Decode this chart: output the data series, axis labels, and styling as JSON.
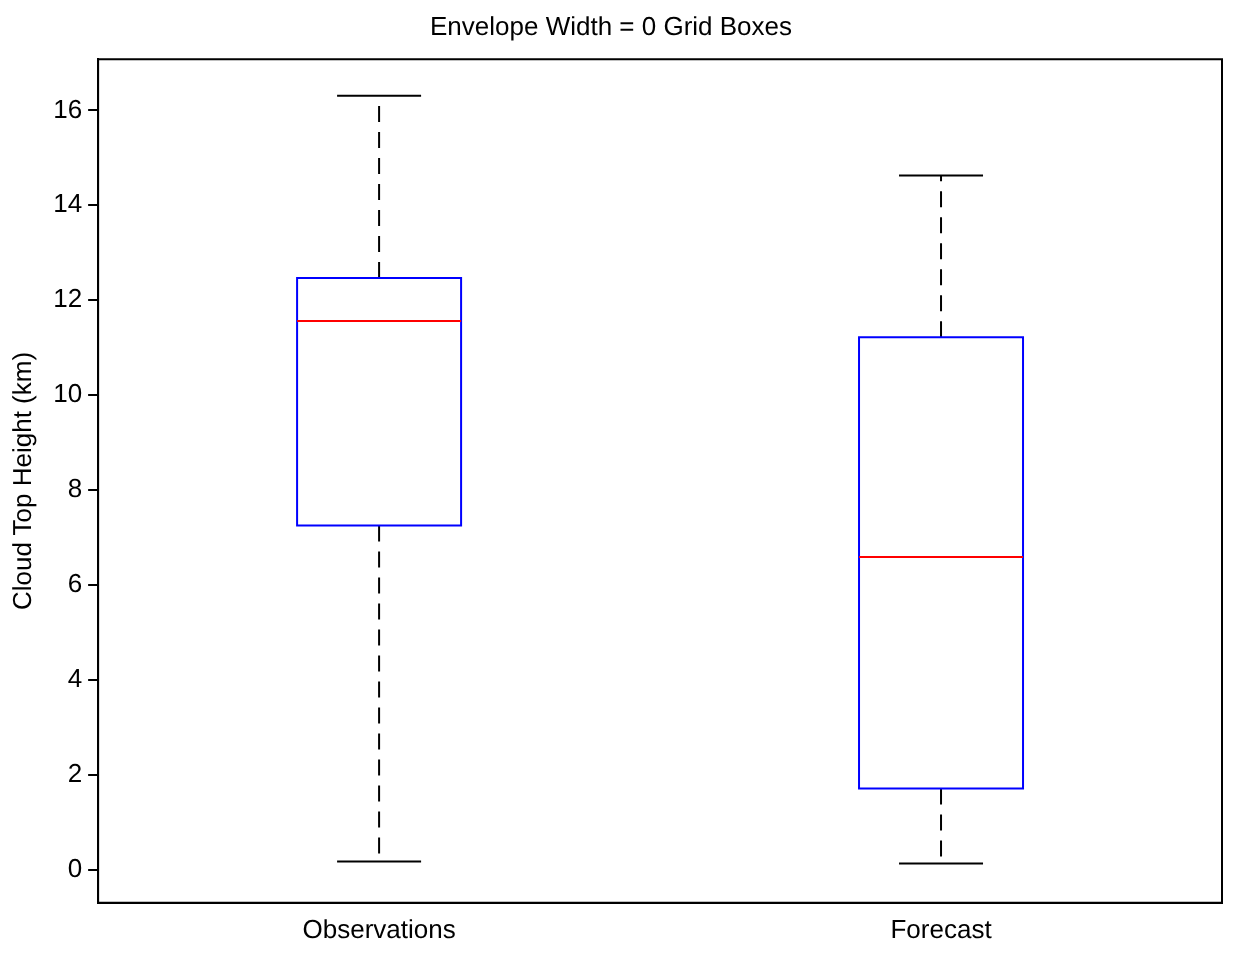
{
  "chart_data": {
    "type": "box",
    "title": "Envelope Width = 0 Grid Boxes",
    "ylabel": "Cloud Top Height (km)",
    "categories": [
      "Observations",
      "Forecast"
    ],
    "color": "#0000ff",
    "boxes": [
      {
        "low": 0.17,
        "q1": 7.25,
        "median": 11.56,
        "q3": 12.47,
        "high": 16.31
      },
      {
        "low": 0.13,
        "q1": 1.71,
        "median": 6.59,
        "q3": 11.22,
        "high": 14.63
      }
    ],
    "ylim": [
      -0.7,
      17.08
    ],
    "yticks": [
      0,
      2,
      4,
      6,
      8,
      10,
      12,
      14,
      16
    ],
    "grid": false,
    "legend": false
  }
}
